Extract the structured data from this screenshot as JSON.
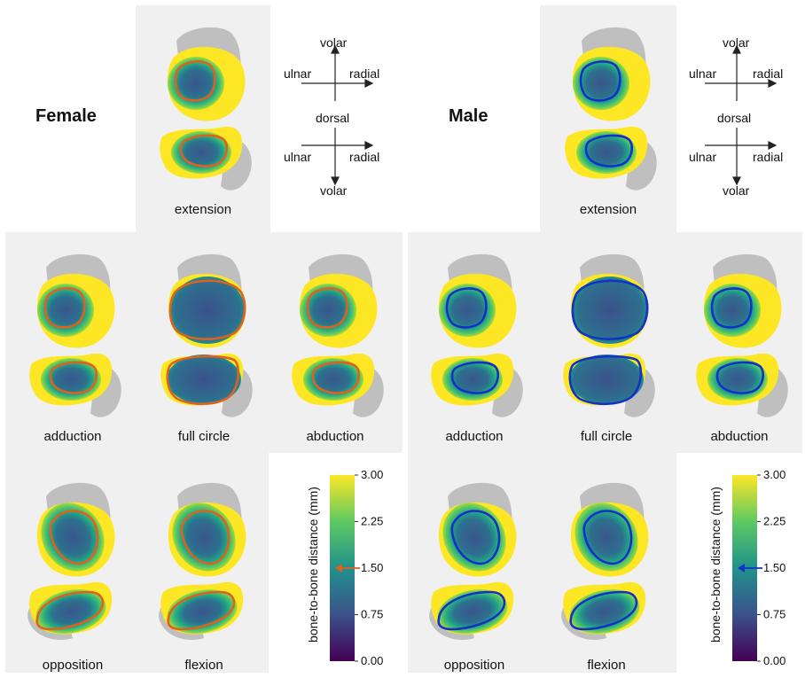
{
  "titles": {
    "female": "Female",
    "male": "Male"
  },
  "orientation": {
    "top": {
      "up": "volar",
      "left": "ulnar",
      "right": "radial"
    },
    "middle": "dorsal",
    "bottom": {
      "down": "volar",
      "left": "ulnar",
      "right": "radial"
    }
  },
  "captions": {
    "extension": "extension",
    "adduction": "adduction",
    "full_circle": "full circle",
    "abduction": "abduction",
    "opposition": "opposition",
    "flexion": "flexion"
  },
  "colorbar": {
    "label": "bone-to-bone distance (mm)",
    "ticks": [
      "3.00",
      "2.25",
      "1.50",
      "0.75",
      "0.00"
    ],
    "min": 0.0,
    "max": 3.0,
    "marker_value": 1.5
  },
  "colors": {
    "female_outline": "#e0601e",
    "male_outline": "#1530c8",
    "bone_gray": "#bfbfbf",
    "panel_bg": "#f0f0f0",
    "viridis": [
      "#440154",
      "#3b528b",
      "#21918c",
      "#5ec962",
      "#fde725"
    ]
  }
}
